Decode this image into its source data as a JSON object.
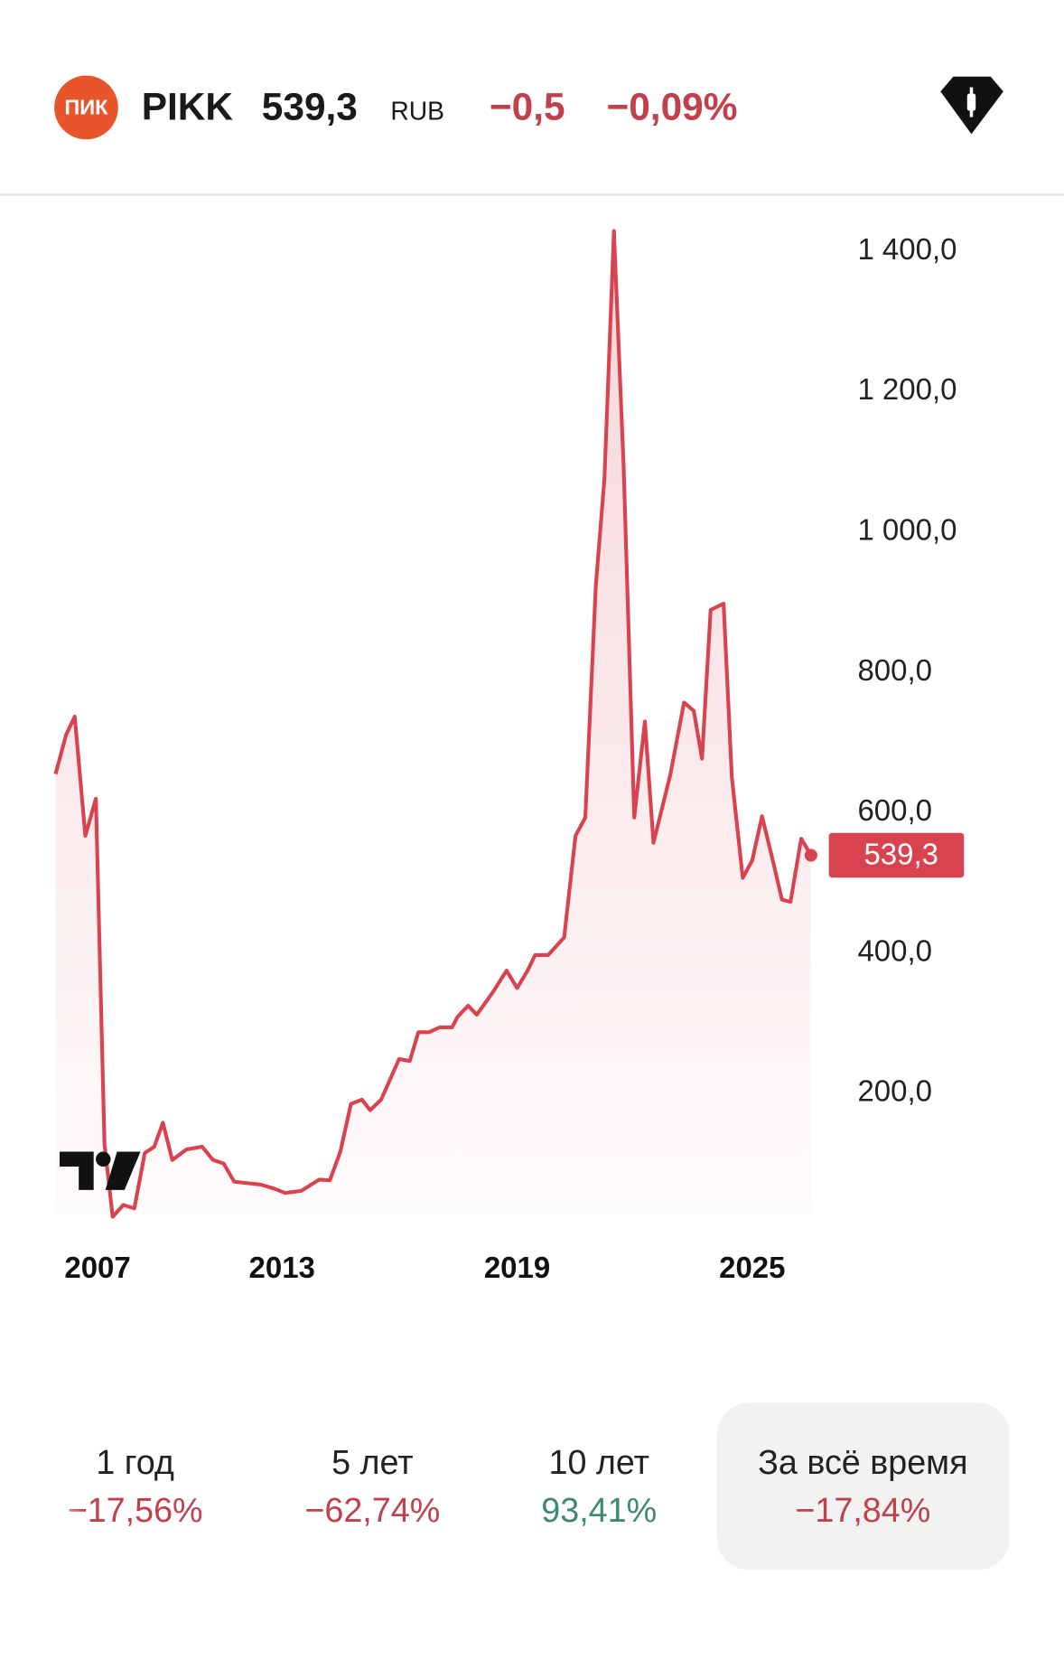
{
  "header": {
    "logo_text": "ПИК",
    "ticker": "PIKK",
    "price": "539,3",
    "currency": "RUB",
    "change": "−0,5",
    "change_pct": "−0,09%"
  },
  "chart_data": {
    "type": "line",
    "color": "#d9434f",
    "area": true,
    "x": [
      2007.22,
      2007.49,
      2007.71,
      2007.98,
      2008.25,
      2008.47,
      2008.68,
      2008.95,
      2009.23,
      2009.5,
      2009.74,
      2009.96,
      2010.2,
      2010.56,
      2010.96,
      2011.24,
      2011.51,
      2011.78,
      2012.46,
      2012.81,
      2013.08,
      2013.49,
      2013.95,
      2014.22,
      2014.49,
      2014.76,
      2015.04,
      2015.25,
      2015.53,
      2015.99,
      2016.26,
      2016.48,
      2016.75,
      2017.02,
      2017.34,
      2017.48,
      2017.75,
      2017.97,
      2018.38,
      2018.73,
      2019.0,
      2019.27,
      2019.46,
      2019.79,
      2020.2,
      2020.49,
      2020.74,
      2021.01,
      2021.23,
      2021.47,
      2021.72,
      2021.99,
      2022.26,
      2022.48,
      2022.91,
      2023.26,
      2023.51,
      2023.72,
      2023.94,
      2024.27,
      2024.48,
      2024.76,
      2025.0,
      2025.25,
      2025.54,
      2025.76,
      2025.98,
      2026.25,
      2026.5
    ],
    "values": [
      655,
      711,
      737,
      567,
      620,
      127,
      24,
      41,
      36,
      115,
      124,
      158,
      105,
      120,
      124,
      105,
      100,
      74,
      70,
      64,
      58,
      61,
      77,
      76,
      117,
      185,
      191,
      176,
      191,
      249,
      246,
      287,
      287,
      294,
      294,
      309,
      325,
      312,
      344,
      375,
      350,
      375,
      397,
      397,
      422,
      567,
      593,
      924,
      1076,
      1429,
      1091,
      593,
      730,
      557,
      654,
      757,
      745,
      677,
      889,
      898,
      651,
      507,
      532,
      595,
      529,
      476,
      473,
      563,
      539.3
    ],
    "xlim": [
      2006.8,
      2026.5
    ],
    "ylim": [
      0,
      1460
    ],
    "xticks": [
      2007,
      2013,
      2019,
      2025
    ],
    "yticks": [
      {
        "value": 200,
        "label": "200,0"
      },
      {
        "value": 400,
        "label": "400,0"
      },
      {
        "value": 600,
        "label": "600,0"
      },
      {
        "value": 800,
        "label": "800,0"
      },
      {
        "value": 1000,
        "label": "1 000,0"
      },
      {
        "value": 1200,
        "label": "1 200,0"
      },
      {
        "value": 1400,
        "label": "1 400,0"
      }
    ]
  },
  "periods": [
    {
      "label": "1 год",
      "change": "−17,56%",
      "color": "#c0404c"
    },
    {
      "label": "5 лет",
      "change": "−62,74%",
      "color": "#c0404c"
    },
    {
      "label": "10 лет",
      "change": "93,41%",
      "color": "#3d8a6a"
    },
    {
      "label": "За всё время",
      "change": "−17,84%",
      "color": "#c0404c",
      "selected": true
    }
  ]
}
